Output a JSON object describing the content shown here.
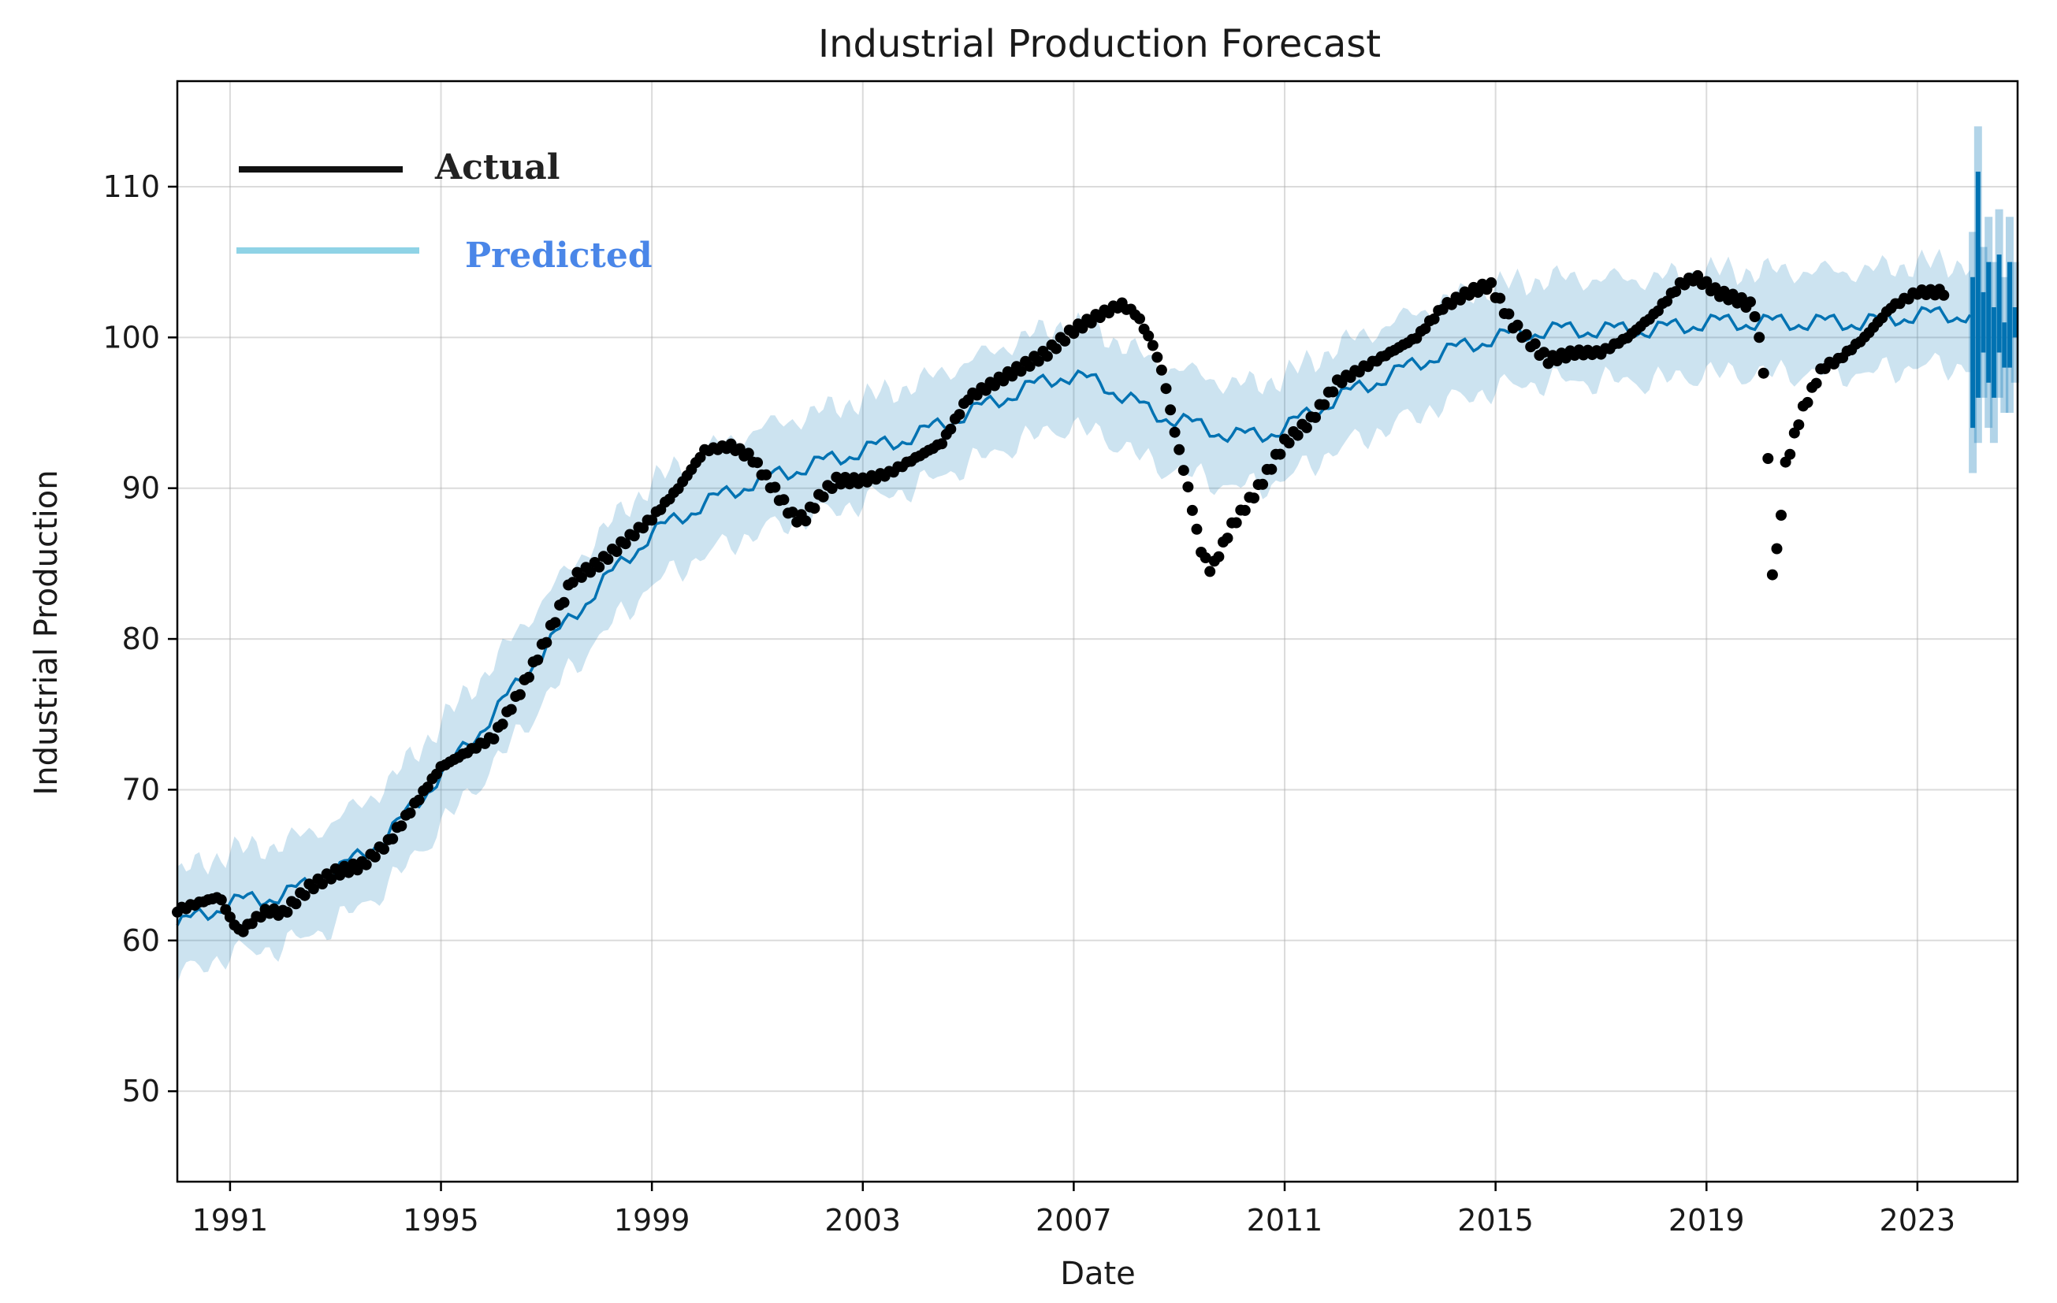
{
  "chart_data": {
    "type": "line",
    "title": "Industrial Production Forecast",
    "xlabel": "Date",
    "ylabel": "Industrial Production",
    "xlim": [
      1990.0,
      2024.9
    ],
    "ylim": [
      44,
      117
    ],
    "grid": true,
    "legend_position": "top-left",
    "x_ticks": [
      1991,
      1995,
      1999,
      2003,
      2007,
      2011,
      2015,
      2019,
      2023
    ],
    "x_tick_labels": [
      "1991",
      "1995",
      "1999",
      "2003",
      "2007",
      "2011",
      "2015",
      "2019",
      "2023"
    ],
    "y_ticks": [
      50,
      60,
      70,
      80,
      90,
      100,
      110
    ],
    "y_tick_labels": [
      "50",
      "60",
      "70",
      "80",
      "90",
      "100",
      "110"
    ],
    "colors": {
      "actual": "#000000",
      "actual_legend": "#111111",
      "predicted": "#0072b2",
      "predicted_legend": "#8fd3e6",
      "predicted_label": "#4a86e8",
      "band": "#0072b2",
      "band_opacity": 0.2
    },
    "series": [
      {
        "name": "Actual",
        "style": "markers",
        "x": [
          1990.0,
          1990.5,
          1990.8,
          1991.0,
          1991.2,
          1991.4,
          1991.7,
          1992.0,
          1992.5,
          1993.0,
          1993.5,
          1994.0,
          1994.5,
          1995.0,
          1995.5,
          1996.0,
          1996.5,
          1997.0,
          1997.5,
          1998.0,
          1998.5,
          1999.0,
          1999.5,
          2000.0,
          2000.5,
          2000.9,
          2001.3,
          2001.7,
          2001.9,
          2002.2,
          2002.5,
          2003.0,
          2003.5,
          2004.0,
          2004.5,
          2005.0,
          2005.5,
          2006.0,
          2006.5,
          2007.0,
          2007.5,
          2007.9,
          2008.2,
          2008.5,
          2008.7,
          2008.9,
          2009.2,
          2009.4,
          2009.6,
          2010.0,
          2010.5,
          2011.0,
          2011.5,
          2012.0,
          2012.5,
          2013.0,
          2013.5,
          2014.0,
          2014.5,
          2014.9,
          2015.3,
          2015.7,
          2016.0,
          2016.5,
          2017.0,
          2017.5,
          2018.0,
          2018.5,
          2018.8,
          2019.2,
          2019.6,
          2019.9,
          2020.1,
          2020.25,
          2020.35,
          2020.5,
          2020.8,
          2021.0,
          2021.2,
          2021.5,
          2022.0,
          2022.5,
          2023.0,
          2023.5
        ],
        "values": [
          62.0,
          62.6,
          62.9,
          61.5,
          60.5,
          61.2,
          62.0,
          61.8,
          63.5,
          64.5,
          65.0,
          66.5,
          69.0,
          71.5,
          72.5,
          73.5,
          76.5,
          80.0,
          84.0,
          85.0,
          86.5,
          88.0,
          90.0,
          92.5,
          92.8,
          92.0,
          90.0,
          88.0,
          88.0,
          89.5,
          90.5,
          90.5,
          91.0,
          92.0,
          93.0,
          96.0,
          97.0,
          98.0,
          99.0,
          100.5,
          101.5,
          102.2,
          101.5,
          99.5,
          97.5,
          94.0,
          89.5,
          86.0,
          84.5,
          87.5,
          90.0,
          93.0,
          94.5,
          97.0,
          98.0,
          99.0,
          100.0,
          102.0,
          103.0,
          103.5,
          101.0,
          99.5,
          98.5,
          99.0,
          99.0,
          100.0,
          101.5,
          103.5,
          104.0,
          103.0,
          102.5,
          102.0,
          97.5,
          84.5,
          86.0,
          91.5,
          95.0,
          96.5,
          98.0,
          98.5,
          100.0,
          102.0,
          103.0,
          103.0
        ]
      },
      {
        "name": "Predicted",
        "style": "line",
        "x": [
          1990.0,
          1991.0,
          1992.0,
          1993.0,
          1994.0,
          1995.0,
          1996.0,
          1997.0,
          1998.0,
          1999.0,
          2000.0,
          2001.0,
          2002.0,
          2003.0,
          2004.0,
          2005.0,
          2006.0,
          2006.8,
          2007.5,
          2008.0,
          2008.5,
          2009.0,
          2009.5,
          2010.0,
          2010.5,
          2011.0,
          2012.0,
          2013.0,
          2014.0,
          2015.0,
          2016.0,
          2017.0,
          2018.0,
          2019.0,
          2020.0,
          2021.0,
          2022.0,
          2023.0,
          2024.0
        ],
        "values": [
          61.0,
          62.5,
          63.0,
          64.5,
          67.0,
          71.0,
          75.0,
          79.5,
          83.5,
          87.0,
          89.0,
          90.5,
          91.5,
          92.5,
          93.5,
          95.0,
          96.5,
          97.5,
          97.0,
          96.0,
          95.0,
          94.5,
          94.0,
          93.5,
          93.5,
          94.0,
          96.0,
          97.5,
          99.0,
          100.0,
          100.5,
          100.5,
          100.5,
          101.0,
          101.0,
          101.0,
          101.0,
          101.5,
          101.5
        ]
      }
    ],
    "legend": {
      "actual": "Actual",
      "predicted": "Predicted"
    }
  }
}
